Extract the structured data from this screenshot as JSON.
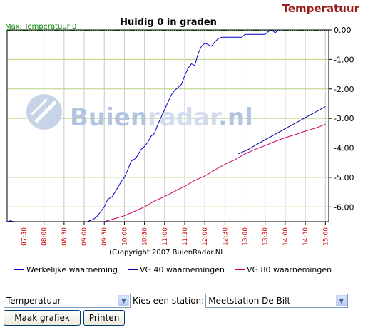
{
  "page_title": "Temperatuur",
  "chart_data": {
    "type": "line",
    "title": "Huidig 0 in graden",
    "max_label": "Max. Temperatuur 0",
    "copyright": "(C)opyright 2007 BuienRadar.NL",
    "watermark": {
      "text_dark": "Buien",
      "text_light": "radar",
      "text_suffix": ".nl"
    },
    "x_unit": "time",
    "x_ticks": [
      "07:30",
      "08:00",
      "08:30",
      "09:00",
      "09:30",
      "10:00",
      "10:30",
      "11:00",
      "11:30",
      "12:00",
      "12:30",
      "13:00",
      "13:30",
      "14:00",
      "14:30",
      "15:00"
    ],
    "x_range": [
      "07:05",
      "15:05"
    ],
    "y_ticks": [
      "0.00",
      "-1.00",
      "-2.00",
      "-3.00",
      "-4.00",
      "-5.00",
      "-6.00"
    ],
    "ylim": [
      -6.5,
      0
    ],
    "grid": true,
    "legend_position": "bottom",
    "series": [
      {
        "name": "Werkelijke waarneming",
        "color": "#0000cc",
        "points": [
          [
            "07:05",
            -6.5
          ],
          [
            "07:10",
            -6.47
          ],
          [
            "07:15",
            -6.5
          ],
          [
            "09:05",
            -6.5
          ],
          [
            "09:15",
            -6.4
          ],
          [
            "09:20",
            -6.3
          ],
          [
            "09:25",
            -6.15
          ],
          [
            "09:30",
            -6.0
          ],
          [
            "09:35",
            -5.75
          ],
          [
            "09:42",
            -5.65
          ],
          [
            "09:50",
            -5.35
          ],
          [
            "09:55",
            -5.15
          ],
          [
            "10:00",
            -5.0
          ],
          [
            "10:05",
            -4.75
          ],
          [
            "10:10",
            -4.45
          ],
          [
            "10:17",
            -4.35
          ],
          [
            "10:25",
            -4.05
          ],
          [
            "10:30",
            -3.95
          ],
          [
            "10:35",
            -3.8
          ],
          [
            "10:40",
            -3.6
          ],
          [
            "10:45",
            -3.5
          ],
          [
            "10:50",
            -3.2
          ],
          [
            "10:55",
            -2.95
          ],
          [
            "11:00",
            -2.7
          ],
          [
            "11:05",
            -2.45
          ],
          [
            "11:10",
            -2.2
          ],
          [
            "11:15",
            -2.05
          ],
          [
            "11:20",
            -1.95
          ],
          [
            "11:25",
            -1.85
          ],
          [
            "11:30",
            -1.55
          ],
          [
            "11:35",
            -1.3
          ],
          [
            "11:40",
            -1.15
          ],
          [
            "11:45",
            -1.2
          ],
          [
            "11:50",
            -0.8
          ],
          [
            "11:55",
            -0.55
          ],
          [
            "12:00",
            -0.45
          ],
          [
            "12:05",
            -0.5
          ],
          [
            "12:10",
            -0.55
          ],
          [
            "12:15",
            -0.4
          ],
          [
            "12:20",
            -0.3
          ],
          [
            "12:25",
            -0.25
          ],
          [
            "12:55",
            -0.25
          ],
          [
            "13:00",
            -0.15
          ],
          [
            "13:30",
            -0.15
          ],
          [
            "13:35",
            -0.05
          ],
          [
            "13:40",
            0.0
          ],
          [
            "13:45",
            -0.1
          ],
          [
            "13:50",
            0.0
          ],
          [
            "15:05",
            0.0
          ]
        ]
      },
      {
        "name": "VG 40 waarnemingen",
        "color": "#000099",
        "points": [
          [
            "12:50",
            -4.2
          ],
          [
            "13:05",
            -4.05
          ],
          [
            "13:20",
            -3.85
          ],
          [
            "13:40",
            -3.6
          ],
          [
            "14:00",
            -3.35
          ],
          [
            "14:20",
            -3.1
          ],
          [
            "14:40",
            -2.85
          ],
          [
            "15:00",
            -2.6
          ]
        ]
      },
      {
        "name": "VG 80 waarnemingen",
        "color": "#cc0066",
        "points": [
          [
            "09:30",
            -6.5
          ],
          [
            "09:45",
            -6.4
          ],
          [
            "10:00",
            -6.3
          ],
          [
            "10:15",
            -6.15
          ],
          [
            "10:30",
            -6.0
          ],
          [
            "10:45",
            -5.8
          ],
          [
            "11:00",
            -5.65
          ],
          [
            "11:15",
            -5.47
          ],
          [
            "11:30",
            -5.3
          ],
          [
            "11:45",
            -5.1
          ],
          [
            "12:00",
            -4.95
          ],
          [
            "12:15",
            -4.75
          ],
          [
            "12:30",
            -4.55
          ],
          [
            "12:45",
            -4.4
          ],
          [
            "13:00",
            -4.2
          ],
          [
            "13:15",
            -4.05
          ],
          [
            "13:30",
            -3.92
          ],
          [
            "13:45",
            -3.78
          ],
          [
            "14:00",
            -3.65
          ],
          [
            "14:15",
            -3.55
          ],
          [
            "14:30",
            -3.43
          ],
          [
            "14:45",
            -3.33
          ],
          [
            "15:00",
            -3.2
          ]
        ]
      }
    ]
  },
  "controls": {
    "select_type": "Temperatuur",
    "station_label": "Kies een station:",
    "select_station": "Meetstation De Bilt",
    "btn_make": "Maak grafiek",
    "btn_print": "Printen"
  }
}
